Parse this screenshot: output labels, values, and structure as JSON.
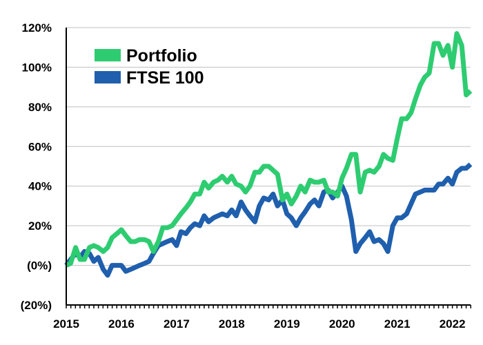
{
  "chart_data": {
    "type": "line",
    "title": "",
    "xlabel": "",
    "ylabel": "",
    "x_ticks": [
      "2015",
      "2016",
      "2017",
      "2018",
      "2019",
      "2020",
      "2021",
      "2022"
    ],
    "y_ticks": [
      "(20%)",
      "(0%)",
      "20%",
      "40%",
      "60%",
      "80%",
      "100%",
      "120%"
    ],
    "ylim": [
      -20,
      120
    ],
    "xlim": [
      2015.0,
      2022.33
    ],
    "grid": "horizontal",
    "legend_position": "top-left",
    "series": [
      {
        "name": "Portfolio",
        "color": "#2ecc71",
        "points": [
          [
            2015.0,
            0
          ],
          [
            2015.08,
            1
          ],
          [
            2015.17,
            9
          ],
          [
            2015.25,
            3
          ],
          [
            2015.33,
            3
          ],
          [
            2015.42,
            9
          ],
          [
            2015.5,
            10
          ],
          [
            2015.58,
            9
          ],
          [
            2015.67,
            7
          ],
          [
            2015.75,
            9
          ],
          [
            2015.83,
            14
          ],
          [
            2015.92,
            16
          ],
          [
            2016.0,
            18
          ],
          [
            2016.08,
            15
          ],
          [
            2016.17,
            12
          ],
          [
            2016.25,
            12
          ],
          [
            2016.33,
            13
          ],
          [
            2016.42,
            13
          ],
          [
            2016.5,
            12
          ],
          [
            2016.58,
            7
          ],
          [
            2016.67,
            12
          ],
          [
            2016.75,
            19
          ],
          [
            2016.83,
            19
          ],
          [
            2016.92,
            20
          ],
          [
            2017.0,
            23
          ],
          [
            2017.08,
            26
          ],
          [
            2017.17,
            29
          ],
          [
            2017.25,
            32
          ],
          [
            2017.33,
            36
          ],
          [
            2017.42,
            36
          ],
          [
            2017.5,
            42
          ],
          [
            2017.58,
            39
          ],
          [
            2017.67,
            42
          ],
          [
            2017.75,
            43
          ],
          [
            2017.83,
            45
          ],
          [
            2017.92,
            42
          ],
          [
            2018.0,
            45
          ],
          [
            2018.08,
            41
          ],
          [
            2018.17,
            40
          ],
          [
            2018.25,
            37
          ],
          [
            2018.33,
            40
          ],
          [
            2018.42,
            47
          ],
          [
            2018.5,
            47
          ],
          [
            2018.58,
            50
          ],
          [
            2018.67,
            50
          ],
          [
            2018.75,
            48
          ],
          [
            2018.83,
            46
          ],
          [
            2018.92,
            33
          ],
          [
            2019.0,
            36
          ],
          [
            2019.08,
            31
          ],
          [
            2019.17,
            35
          ],
          [
            2019.25,
            40
          ],
          [
            2019.33,
            37
          ],
          [
            2019.42,
            43
          ],
          [
            2019.5,
            42
          ],
          [
            2019.58,
            42
          ],
          [
            2019.67,
            43
          ],
          [
            2019.75,
            37
          ],
          [
            2019.83,
            37
          ],
          [
            2019.92,
            35
          ],
          [
            2020.0,
            44
          ],
          [
            2020.08,
            49
          ],
          [
            2020.17,
            56
          ],
          [
            2020.25,
            56
          ],
          [
            2020.33,
            37
          ],
          [
            2020.42,
            47
          ],
          [
            2020.5,
            48
          ],
          [
            2020.58,
            47
          ],
          [
            2020.67,
            50
          ],
          [
            2020.75,
            56
          ],
          [
            2020.83,
            54
          ],
          [
            2020.92,
            53
          ],
          [
            2021.0,
            64
          ],
          [
            2021.08,
            74
          ],
          [
            2021.17,
            74
          ],
          [
            2021.25,
            77
          ],
          [
            2021.33,
            84
          ],
          [
            2021.42,
            91
          ],
          [
            2021.5,
            95
          ],
          [
            2021.58,
            97
          ],
          [
            2021.67,
            112
          ],
          [
            2021.75,
            112
          ],
          [
            2021.83,
            106
          ],
          [
            2021.92,
            111
          ],
          [
            2022.0,
            100
          ],
          [
            2022.08,
            117
          ],
          [
            2022.17,
            111
          ],
          [
            2022.25,
            86
          ],
          [
            2022.33,
            88
          ]
        ]
      },
      {
        "name": "FTSE 100",
        "color": "#1f5fad",
        "points": [
          [
            2015.0,
            0
          ],
          [
            2015.08,
            3
          ],
          [
            2015.17,
            6
          ],
          [
            2015.25,
            4
          ],
          [
            2015.33,
            7
          ],
          [
            2015.42,
            6
          ],
          [
            2015.5,
            2
          ],
          [
            2015.58,
            4
          ],
          [
            2015.67,
            -2
          ],
          [
            2015.75,
            -5
          ],
          [
            2015.83,
            0
          ],
          [
            2015.92,
            0
          ],
          [
            2016.0,
            0
          ],
          [
            2016.08,
            -3
          ],
          [
            2016.17,
            -2
          ],
          [
            2016.25,
            -1
          ],
          [
            2016.33,
            0
          ],
          [
            2016.42,
            1
          ],
          [
            2016.5,
            2
          ],
          [
            2016.58,
            6
          ],
          [
            2016.67,
            10
          ],
          [
            2016.75,
            11
          ],
          [
            2016.83,
            12
          ],
          [
            2016.92,
            13
          ],
          [
            2017.0,
            10
          ],
          [
            2017.08,
            17
          ],
          [
            2017.17,
            16
          ],
          [
            2017.25,
            19
          ],
          [
            2017.33,
            21
          ],
          [
            2017.42,
            20
          ],
          [
            2017.5,
            25
          ],
          [
            2017.58,
            22
          ],
          [
            2017.67,
            24
          ],
          [
            2017.75,
            25
          ],
          [
            2017.83,
            26
          ],
          [
            2017.92,
            25
          ],
          [
            2018.0,
            28
          ],
          [
            2018.08,
            25
          ],
          [
            2018.17,
            32
          ],
          [
            2018.25,
            28
          ],
          [
            2018.33,
            25
          ],
          [
            2018.42,
            22
          ],
          [
            2018.5,
            30
          ],
          [
            2018.58,
            34
          ],
          [
            2018.67,
            33
          ],
          [
            2018.75,
            36
          ],
          [
            2018.83,
            30
          ],
          [
            2018.92,
            33
          ],
          [
            2019.0,
            26
          ],
          [
            2019.08,
            24
          ],
          [
            2019.17,
            20
          ],
          [
            2019.25,
            24
          ],
          [
            2019.33,
            27
          ],
          [
            2019.42,
            31
          ],
          [
            2019.5,
            33
          ],
          [
            2019.58,
            30
          ],
          [
            2019.67,
            37
          ],
          [
            2019.75,
            38
          ],
          [
            2019.83,
            34
          ],
          [
            2019.92,
            37
          ],
          [
            2020.0,
            40
          ],
          [
            2020.08,
            35
          ],
          [
            2020.17,
            23
          ],
          [
            2020.25,
            7
          ],
          [
            2020.33,
            11
          ],
          [
            2020.42,
            14
          ],
          [
            2020.5,
            17
          ],
          [
            2020.58,
            12
          ],
          [
            2020.67,
            13
          ],
          [
            2020.75,
            11
          ],
          [
            2020.83,
            7
          ],
          [
            2020.92,
            20
          ],
          [
            2021.0,
            24
          ],
          [
            2021.08,
            24
          ],
          [
            2021.17,
            26
          ],
          [
            2021.25,
            31
          ],
          [
            2021.33,
            36
          ],
          [
            2021.42,
            37
          ],
          [
            2021.5,
            38
          ],
          [
            2021.58,
            38
          ],
          [
            2021.67,
            38
          ],
          [
            2021.75,
            41
          ],
          [
            2021.83,
            41
          ],
          [
            2021.92,
            44
          ],
          [
            2022.0,
            41
          ],
          [
            2022.08,
            47
          ],
          [
            2022.17,
            49
          ],
          [
            2022.25,
            49
          ],
          [
            2022.33,
            51
          ]
        ]
      }
    ]
  }
}
